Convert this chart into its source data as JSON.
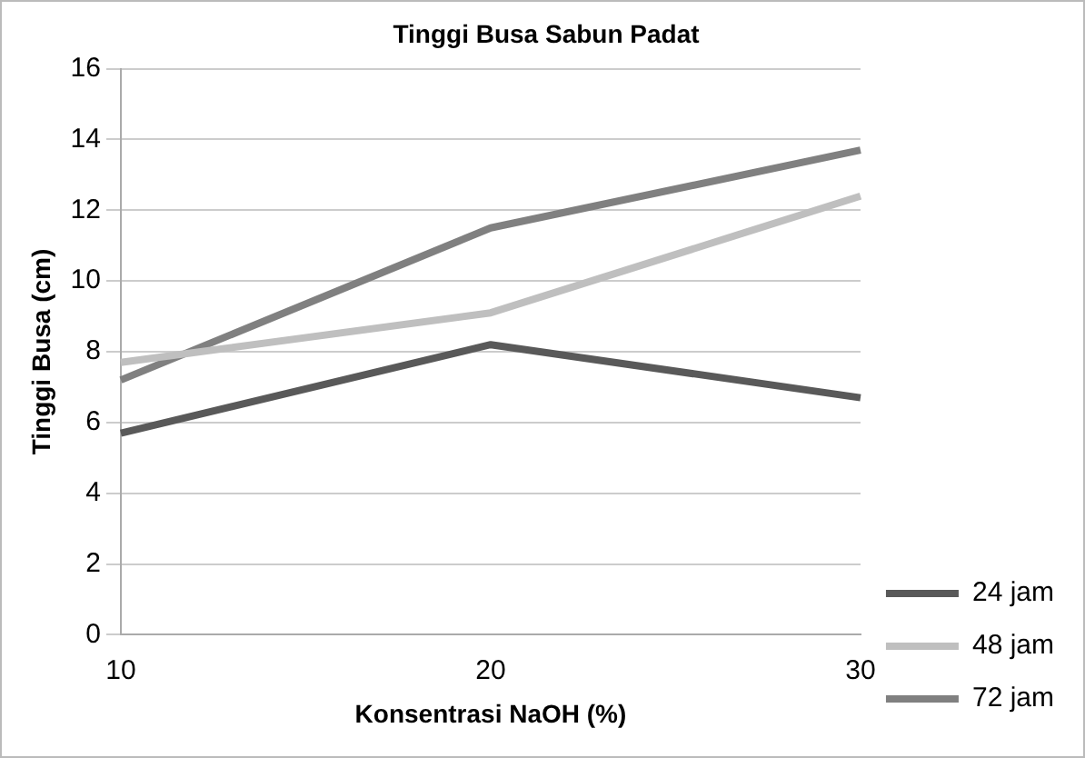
{
  "chart_data": {
    "type": "line",
    "title": "Tinggi Busa Sabun Padat",
    "xlabel": "Konsentrasi NaOH (%)",
    "ylabel": "Tinggi Busa (cm)",
    "categories": [
      "10",
      "20",
      "30"
    ],
    "series": [
      {
        "name": "24 jam",
        "color": "#595959",
        "values": [
          5.7,
          8.2,
          6.7
        ]
      },
      {
        "name": "48 jam",
        "color": "#bfbfbf",
        "values": [
          7.7,
          9.1,
          12.4
        ]
      },
      {
        "name": "72 jam",
        "color": "#808080",
        "values": [
          7.2,
          11.5,
          13.7
        ]
      }
    ],
    "ylim": [
      0,
      16
    ],
    "yticks": [
      0,
      2,
      4,
      6,
      8,
      10,
      12,
      14,
      16
    ],
    "grid": "y",
    "legend": "bottom right",
    "marker": "none",
    "line_style": "solid"
  }
}
